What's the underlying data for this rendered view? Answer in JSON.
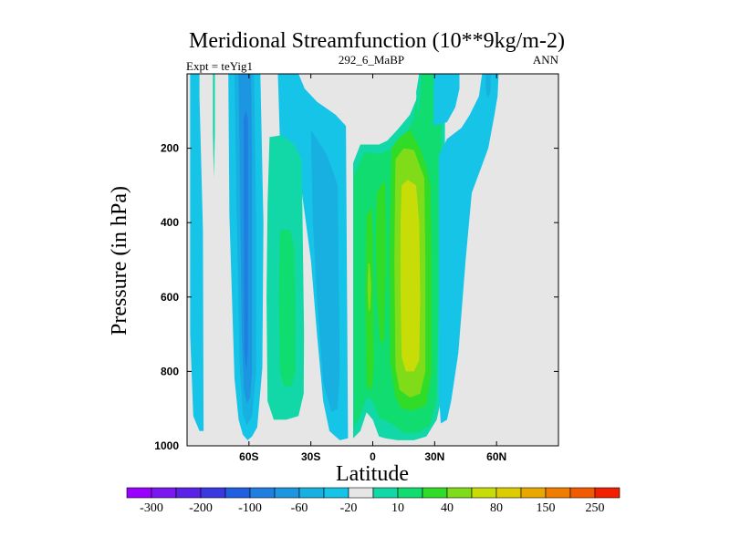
{
  "chart_data": {
    "type": "contour",
    "title": "Meridional Streamfunction (10**9kg/m-2)",
    "left_label": "Expt = teYig1",
    "center_label": "292_6_MaBP",
    "right_label": "ANN",
    "xlabel": "Latitude",
    "ylabel": "Pressure (in hPa)",
    "xlim": [
      -90,
      90
    ],
    "ylim": [
      0,
      1000
    ],
    "x_ticks": [
      {
        "value": -60,
        "label": "60S"
      },
      {
        "value": -30,
        "label": "30S"
      },
      {
        "value": 0,
        "label": "0"
      },
      {
        "value": 30,
        "label": "30N"
      },
      {
        "value": 60,
        "label": "60N"
      }
    ],
    "y_ticks": [
      {
        "value": 200,
        "label": "200"
      },
      {
        "value": 400,
        "label": "400"
      },
      {
        "value": 600,
        "label": "600"
      },
      {
        "value": 800,
        "label": "800"
      },
      {
        "value": 1000,
        "label": "1000"
      }
    ],
    "levels": [
      -300,
      -250,
      -200,
      -150,
      -100,
      -80,
      -60,
      -40,
      -20,
      -10,
      10,
      20,
      40,
      60,
      80,
      100,
      150,
      200,
      250,
      300
    ],
    "colorbar_labels": [
      {
        "index": 1,
        "label": "-300"
      },
      {
        "index": 3,
        "label": "-200"
      },
      {
        "index": 5,
        "label": "-100"
      },
      {
        "index": 7,
        "label": "-60"
      },
      {
        "index": 9,
        "label": "-20"
      },
      {
        "index": 11,
        "label": "10"
      },
      {
        "index": 13,
        "label": "40"
      },
      {
        "index": 15,
        "label": "80"
      },
      {
        "index": 17,
        "label": "150"
      },
      {
        "index": 19,
        "label": "250"
      }
    ],
    "colors": [
      "#9a00ff",
      "#7a18f0",
      "#5a22e8",
      "#3a38e0",
      "#2060e0",
      "#1f7fe0",
      "#1c96e0",
      "#17b0e0",
      "#16c4e8",
      "#e6e6e6",
      "#12d8a8",
      "#10dc70",
      "#30dc28",
      "#80dc18",
      "#c8dc08",
      "#dccc00",
      "#e8a800",
      "#f07c00",
      "#f25a00",
      "#f02000"
    ],
    "background": "#e6e6e6",
    "regions": [
      {
        "level": "-10",
        "color": "#16c4e8",
        "pts": [
          [
            -88.5,
            0
          ],
          [
            -84,
            0
          ],
          [
            -84,
            60
          ],
          [
            -82.3,
            420
          ],
          [
            -82,
            960
          ],
          [
            -84,
            960
          ],
          [
            -87,
            920
          ],
          [
            -88.5,
            700
          ]
        ]
      },
      {
        "level": "-10",
        "color": "#16c4e8",
        "pts": [
          [
            -70,
            0
          ],
          [
            -54.5,
            0
          ],
          [
            -53,
            400
          ],
          [
            -53.5,
            790
          ],
          [
            -56,
            950
          ],
          [
            -58.5,
            975
          ],
          [
            -60.7,
            985
          ],
          [
            -63,
            970
          ],
          [
            -65,
            930
          ],
          [
            -67,
            820
          ],
          [
            -69.5,
            380
          ]
        ]
      },
      {
        "level": "-20",
        "color": "#17b0e0",
        "pts": [
          [
            -67,
            0
          ],
          [
            -57.5,
            0
          ],
          [
            -56.5,
            400
          ],
          [
            -56.5,
            800
          ],
          [
            -58.5,
            920
          ],
          [
            -61,
            945
          ],
          [
            -63,
            915
          ],
          [
            -64.5,
            790
          ],
          [
            -66,
            370
          ]
        ]
      },
      {
        "level": "-40",
        "color": "#1c96e0",
        "pts": [
          [
            -65,
            0
          ],
          [
            -59,
            0
          ],
          [
            -58.5,
            230
          ],
          [
            -58.5,
            800
          ],
          [
            -59.5,
            870
          ],
          [
            -61,
            885
          ],
          [
            -62.5,
            850
          ],
          [
            -63.5,
            700
          ],
          [
            -64.5,
            230
          ]
        ]
      },
      {
        "level": "-60",
        "color": "#1f7fe0",
        "pts": [
          [
            -61.5,
            100
          ],
          [
            -60.5,
            120
          ],
          [
            -60.5,
            740
          ],
          [
            -61.3,
            800
          ],
          [
            -62.3,
            740
          ],
          [
            -62.6,
            120
          ]
        ]
      },
      {
        "level": "10",
        "color": "#12d8a8",
        "pts": [
          [
            -77.5,
            0
          ],
          [
            -76.5,
            0
          ],
          [
            -76.5,
            160
          ],
          [
            -77,
            280
          ],
          [
            -77.5,
            160
          ]
        ]
      },
      {
        "level": "-10",
        "color": "#16c4e8",
        "pts": [
          [
            -46,
            0
          ],
          [
            -36,
            0
          ],
          [
            -33,
            40
          ],
          [
            -27,
            75
          ],
          [
            -18,
            110
          ],
          [
            -13,
            140
          ],
          [
            -12,
            980
          ],
          [
            -16,
            985
          ],
          [
            -21,
            960
          ],
          [
            -24,
            880
          ],
          [
            -27,
            700
          ],
          [
            -30,
            500
          ],
          [
            -36,
            250
          ],
          [
            -45,
            180
          ]
        ]
      },
      {
        "level": "-20",
        "color": "#17b0e0",
        "pts": [
          [
            -30,
            150
          ],
          [
            -22,
            220
          ],
          [
            -17,
            300
          ],
          [
            -16,
            800
          ],
          [
            -17,
            900
          ],
          [
            -20,
            910
          ],
          [
            -24,
            830
          ],
          [
            -27,
            600
          ],
          [
            -29,
            400
          ]
        ]
      },
      {
        "level": "-10",
        "color": "#16c4e8",
        "pts": [
          [
            -41.5,
            0
          ],
          [
            -39.5,
            0
          ],
          [
            -39.5,
            85
          ],
          [
            -41.5,
            110
          ]
        ]
      },
      {
        "level": "10",
        "color": "#12d8a8",
        "pts": [
          [
            -50,
            170
          ],
          [
            -44,
            165
          ],
          [
            -38,
            190
          ],
          [
            -34.5,
            230
          ],
          [
            -34,
            400
          ],
          [
            -33.3,
            700
          ],
          [
            -33.5,
            860
          ],
          [
            -36,
            920
          ],
          [
            -42,
            930
          ],
          [
            -48,
            930
          ],
          [
            -51,
            880
          ],
          [
            -51.5,
            600
          ],
          [
            -51,
            350
          ]
        ]
      },
      {
        "level": "20",
        "color": "#10dc70",
        "pts": [
          [
            -45,
            420
          ],
          [
            -40,
            420
          ],
          [
            -38,
            470
          ],
          [
            -37.5,
            600
          ],
          [
            -37.5,
            800
          ],
          [
            -39.5,
            840
          ],
          [
            -43,
            840
          ],
          [
            -45,
            800
          ],
          [
            -45.5,
            600
          ]
        ]
      },
      {
        "level": "10",
        "color": "#12d8a8",
        "pts": [
          [
            -9.5,
            240
          ],
          [
            -6,
            190
          ],
          [
            3,
            190
          ],
          [
            7,
            180
          ],
          [
            12,
            150
          ],
          [
            18,
            110
          ],
          [
            21,
            70
          ],
          [
            22.5,
            0
          ],
          [
            35,
            0
          ],
          [
            35,
            310
          ],
          [
            34,
            800
          ],
          [
            33,
            880
          ],
          [
            31,
            930
          ],
          [
            26,
            975
          ],
          [
            20,
            985
          ],
          [
            12,
            985
          ],
          [
            6,
            980
          ],
          [
            3,
            975
          ],
          [
            0,
            930
          ],
          [
            -3,
            910
          ],
          [
            -6,
            960
          ],
          [
            -9.5,
            980
          ]
        ]
      },
      {
        "level": "20",
        "color": "#10dc70",
        "pts": [
          [
            -9,
            270
          ],
          [
            -4,
            210
          ],
          [
            3,
            215
          ],
          [
            10,
            200
          ],
          [
            16,
            160
          ],
          [
            20,
            120
          ],
          [
            22.5,
            0
          ],
          [
            33.5,
            0
          ],
          [
            33,
            320
          ],
          [
            32,
            600
          ],
          [
            31,
            870
          ],
          [
            28,
            945
          ],
          [
            22,
            965
          ],
          [
            15,
            965
          ],
          [
            9,
            940
          ],
          [
            3,
            925
          ],
          [
            0,
            880
          ],
          [
            -3,
            870
          ],
          [
            -6,
            920
          ],
          [
            -9,
            950
          ]
        ]
      },
      {
        "level": "40",
        "color": "#30dc28",
        "pts": [
          [
            -3,
            380
          ],
          [
            -0.5,
            360
          ],
          [
            0,
            440
          ],
          [
            0.5,
            780
          ],
          [
            -0.5,
            850
          ],
          [
            -3,
            840
          ],
          [
            -3.5,
            600
          ]
        ]
      },
      {
        "level": "40",
        "color": "#30dc28",
        "pts": [
          [
            2,
            320
          ],
          [
            4,
            300
          ],
          [
            6,
            290
          ],
          [
            6.5,
            500
          ],
          [
            5.5,
            720
          ],
          [
            3.5,
            720
          ],
          [
            2,
            600
          ],
          [
            1.5,
            450
          ]
        ]
      },
      {
        "level": "40",
        "color": "#30dc28",
        "pts": [
          [
            9,
            200
          ],
          [
            13,
            170
          ],
          [
            18,
            150
          ],
          [
            20,
            170
          ],
          [
            23,
            200
          ],
          [
            26,
            250
          ],
          [
            28,
            300
          ],
          [
            28.5,
            500
          ],
          [
            28.5,
            800
          ],
          [
            26,
            890
          ],
          [
            20,
            905
          ],
          [
            14,
            900
          ],
          [
            11,
            870
          ],
          [
            8.5,
            780
          ],
          [
            8,
            500
          ]
        ]
      },
      {
        "level": "60",
        "color": "#80dc18",
        "pts": [
          [
            -2.2,
            510
          ],
          [
            -1.5,
            510
          ],
          [
            -0.8,
            570
          ],
          [
            -1.2,
            630
          ],
          [
            -2,
            640
          ],
          [
            -2.5,
            580
          ]
        ]
      },
      {
        "level": "60",
        "color": "#80dc18",
        "pts": [
          [
            11,
            230
          ],
          [
            15,
            200
          ],
          [
            20,
            205
          ],
          [
            25,
            280
          ],
          [
            25.5,
            500
          ],
          [
            25.5,
            800
          ],
          [
            23,
            860
          ],
          [
            18,
            870
          ],
          [
            13,
            850
          ],
          [
            11,
            790
          ],
          [
            10.5,
            500
          ]
        ]
      },
      {
        "level": "80",
        "color": "#c8dc08",
        "pts": [
          [
            14,
            300
          ],
          [
            17,
            285
          ],
          [
            21,
            300
          ],
          [
            22.5,
            400
          ],
          [
            23,
            600
          ],
          [
            22.5,
            770
          ],
          [
            20,
            800
          ],
          [
            16,
            800
          ],
          [
            14,
            760
          ],
          [
            13.5,
            600
          ],
          [
            13.5,
            400
          ]
        ]
      },
      {
        "level": "10",
        "color": "#12d8a8",
        "pts": [
          [
            22.5,
            0
          ],
          [
            23.5,
            0
          ],
          [
            23,
            60
          ],
          [
            22,
            110
          ],
          [
            21,
            50
          ]
        ]
      },
      {
        "level": "-10",
        "color": "#16c4e8",
        "pts": [
          [
            29.5,
            0
          ],
          [
            42,
            0
          ],
          [
            42,
            40
          ],
          [
            40,
            90
          ],
          [
            36,
            130
          ],
          [
            29.5,
            140
          ]
        ]
      },
      {
        "level": "-10",
        "color": "#16c4e8",
        "pts": [
          [
            32,
            220
          ],
          [
            36,
            175
          ],
          [
            43,
            145
          ],
          [
            47,
            110
          ],
          [
            51.5,
            60
          ],
          [
            53,
            0
          ],
          [
            61,
            0
          ],
          [
            60.5,
            60
          ],
          [
            59,
            110
          ],
          [
            56,
            200
          ],
          [
            52,
            260
          ],
          [
            48,
            320
          ],
          [
            45,
            500
          ],
          [
            41.5,
            750
          ],
          [
            38,
            880
          ],
          [
            36,
            930
          ],
          [
            33,
            940
          ],
          [
            32,
            860
          ]
        ]
      },
      {
        "level": "-20",
        "color": "#17b0e0",
        "pts": [
          [
            54.8,
            0
          ],
          [
            57.2,
            0
          ],
          [
            57,
            50
          ],
          [
            55.5,
            65
          ],
          [
            54.8,
            40
          ]
        ]
      }
    ]
  }
}
